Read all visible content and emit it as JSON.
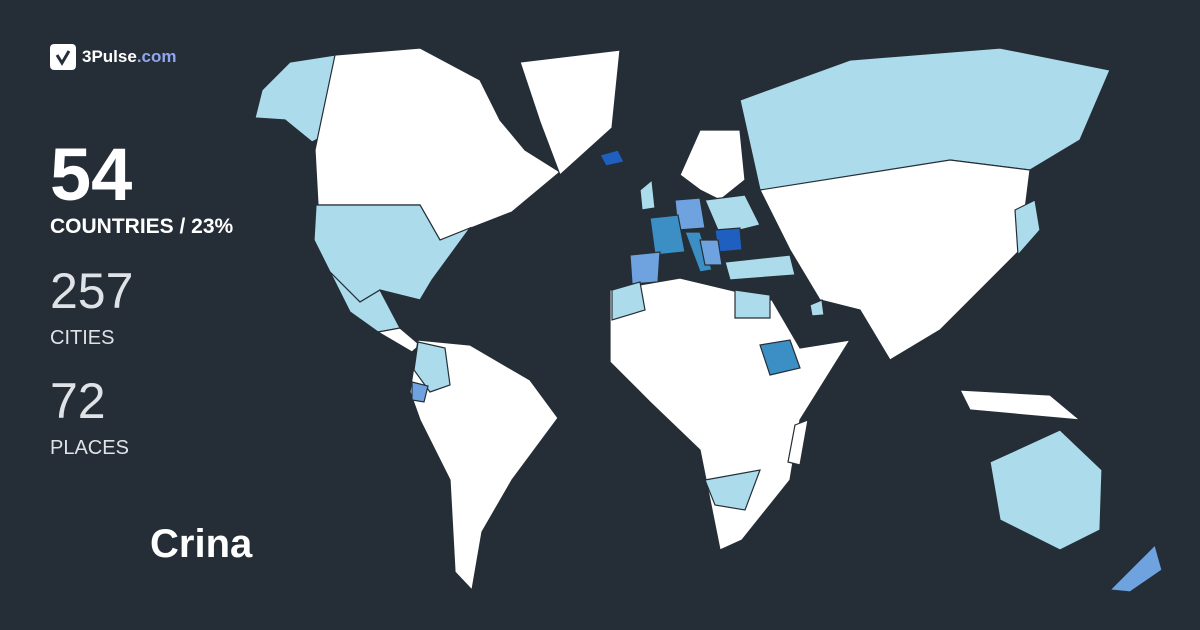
{
  "brand": {
    "name": "3Pulse",
    "domain": ".com",
    "icon": "check-pulse-icon"
  },
  "stats": {
    "countries": {
      "value": "54",
      "label": "COUNTRIES / 23%"
    },
    "cities": {
      "value": "257",
      "label": "CITIES"
    },
    "places": {
      "value": "72",
      "label": "PLACES"
    }
  },
  "user": {
    "name": "Crina"
  },
  "colors": {
    "background": "#252e36",
    "unvisited": "#ffffff",
    "visited_light": "#acdcec",
    "visited_medium": "#6fa3e0",
    "visited_strong": "#3b8fc4",
    "visited_dark": "#1f5fbf"
  }
}
